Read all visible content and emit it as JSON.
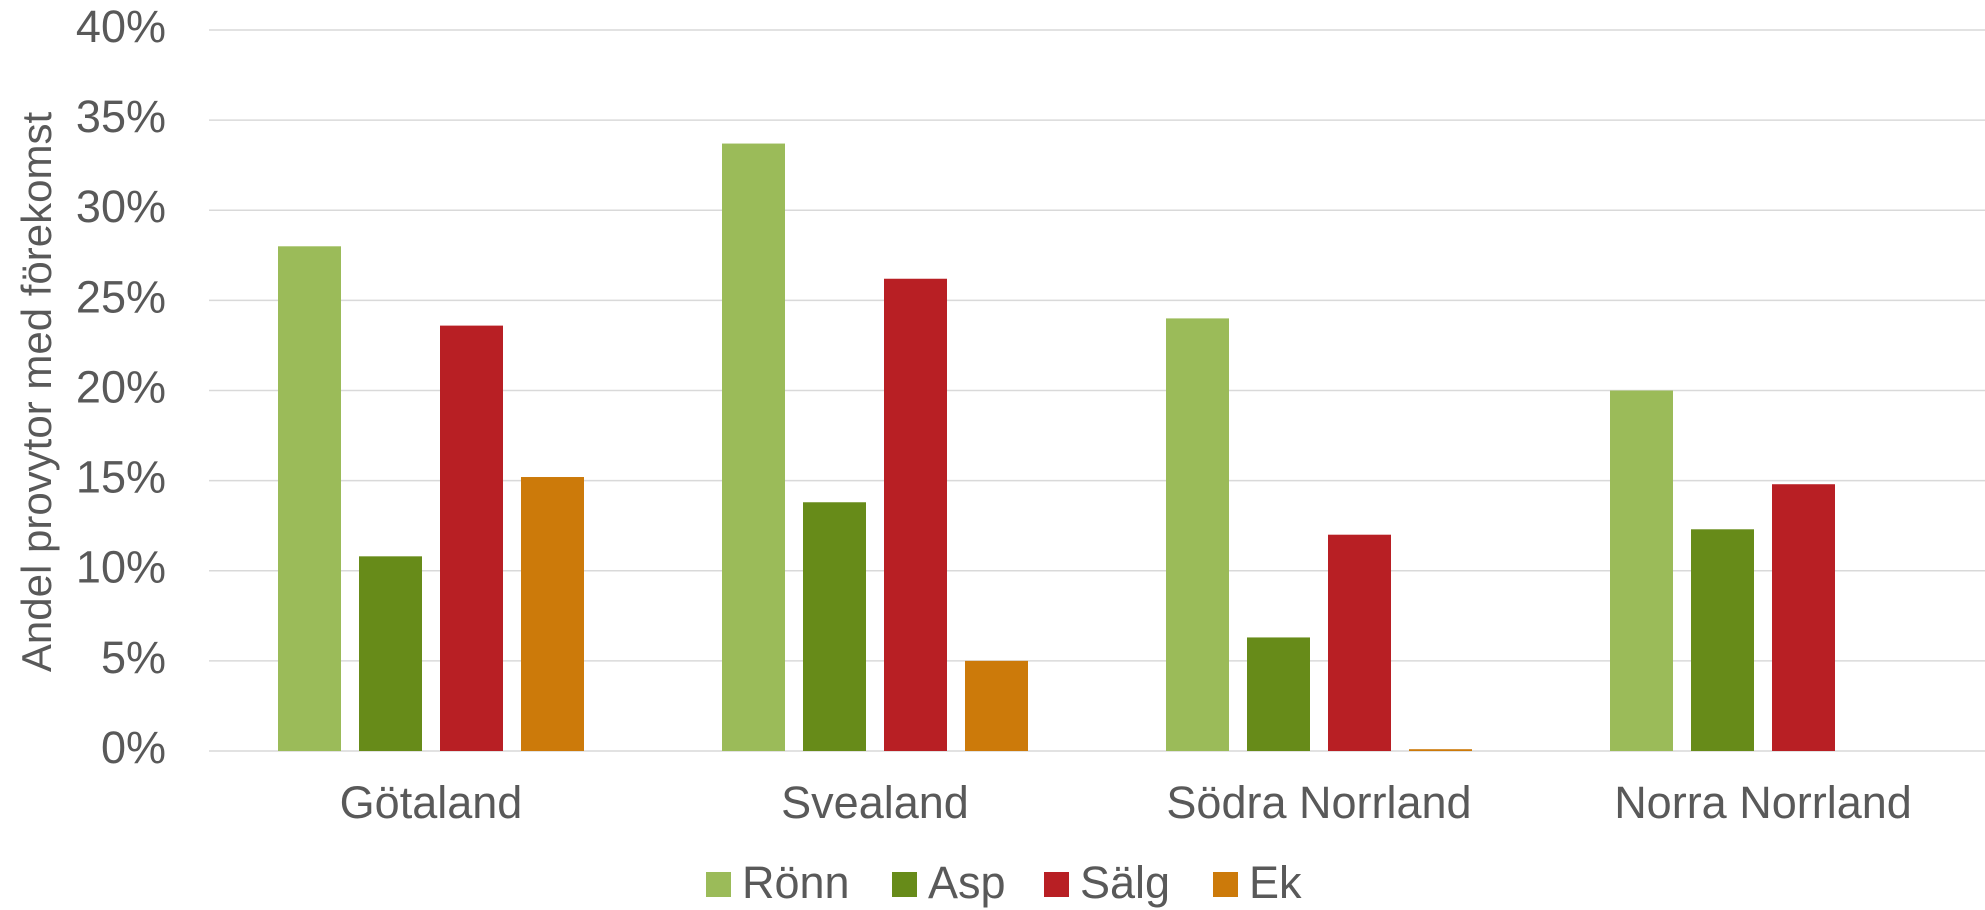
{
  "chart_data": {
    "type": "bar",
    "y_label": "Andel provytor med förekomst",
    "categories": [
      "Götaland",
      "Svealand",
      "Södra Norrland",
      "Norra Norrland"
    ],
    "series": [
      {
        "name": "Rönn",
        "color": "#9bbb59",
        "values": [
          28.0,
          33.7,
          24.0,
          20.0
        ]
      },
      {
        "name": "Asp",
        "color": "#678b19",
        "values": [
          10.8,
          13.8,
          6.3,
          12.3
        ]
      },
      {
        "name": "Sälg",
        "color": "#b81f24",
        "values": [
          23.6,
          26.2,
          12.0,
          14.8
        ]
      },
      {
        "name": "Ek",
        "color": "#cc7a0a",
        "values": [
          15.2,
          5.0,
          0.1,
          0
        ]
      }
    ],
    "ylim": [
      0,
      40
    ],
    "yticks": [
      {
        "value": 0,
        "label": "0%"
      },
      {
        "value": 5,
        "label": "5%"
      },
      {
        "value": 10,
        "label": "10%"
      },
      {
        "value": 15,
        "label": "15%"
      },
      {
        "value": 20,
        "label": "20%"
      },
      {
        "value": 25,
        "label": "25%"
      },
      {
        "value": 30,
        "label": "30%"
      },
      {
        "value": 35,
        "label": "35%"
      },
      {
        "value": 40,
        "label": "40%"
      }
    ],
    "grid": true,
    "legend": "bottom"
  }
}
